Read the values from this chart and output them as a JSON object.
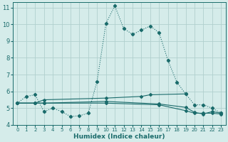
{
  "xlabel": "Humidex (Indice chaleur)",
  "xlim": [
    -0.5,
    23.5
  ],
  "ylim": [
    4,
    11.3
  ],
  "yticks": [
    4,
    5,
    6,
    7,
    8,
    9,
    10,
    11
  ],
  "xticks": [
    0,
    1,
    2,
    3,
    4,
    5,
    6,
    7,
    8,
    9,
    10,
    11,
    12,
    13,
    14,
    15,
    16,
    17,
    18,
    19,
    20,
    21,
    22,
    23
  ],
  "bg_color": "#d5ecea",
  "grid_color": "#b0d0ce",
  "line_color": "#1a6b6b",
  "line1_x": [
    0,
    1,
    2,
    3,
    4,
    5,
    6,
    7,
    8,
    9,
    10,
    11,
    12,
    13,
    14,
    15,
    16,
    17,
    18,
    19,
    20,
    21,
    22,
    23
  ],
  "line1_y": [
    5.3,
    5.7,
    5.8,
    4.8,
    5.0,
    4.8,
    4.5,
    4.55,
    4.7,
    6.6,
    10.05,
    11.1,
    9.75,
    9.4,
    9.65,
    9.9,
    9.5,
    7.85,
    6.55,
    5.85,
    5.2,
    5.2,
    5.0,
    4.7
  ],
  "line2_x": [
    0,
    2,
    3,
    10,
    14,
    15,
    19
  ],
  "line2_y": [
    5.3,
    5.3,
    5.5,
    5.6,
    5.7,
    5.8,
    5.85
  ],
  "line3_x": [
    0,
    2,
    3,
    10,
    16,
    19,
    20,
    21,
    22,
    23
  ],
  "line3_y": [
    5.3,
    5.3,
    5.3,
    5.4,
    5.25,
    5.05,
    4.75,
    4.65,
    4.8,
    4.7
  ],
  "line4_x": [
    0,
    2,
    3,
    10,
    16,
    19,
    20,
    21,
    22,
    23
  ],
  "line4_y": [
    5.3,
    5.3,
    5.3,
    5.3,
    5.2,
    4.85,
    4.7,
    4.7,
    4.7,
    4.65
  ]
}
